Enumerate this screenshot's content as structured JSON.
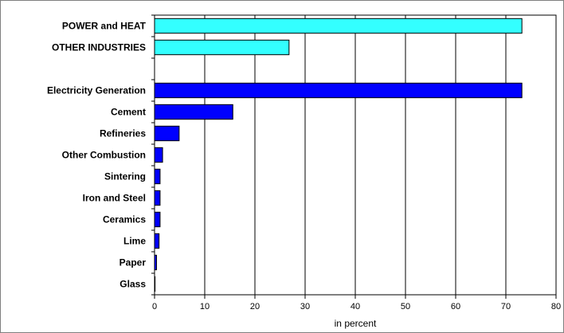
{
  "chart_data": {
    "type": "bar",
    "orientation": "horizontal",
    "categories": [
      "POWER and HEAT",
      "OTHER INDUSTRIES",
      "",
      "Electricity Generation",
      "Cement",
      "Refineries",
      "Other Combustion",
      "Sintering",
      "Iron and Steel",
      "Ceramics",
      "Lime",
      "Paper",
      "Glass"
    ],
    "values": [
      73.2,
      26.8,
      null,
      73.2,
      15.6,
      4.9,
      1.6,
      1.1,
      1.1,
      1.1,
      0.9,
      0.4,
      0.1
    ],
    "bar_colors": [
      "#33FFFF",
      "#33FFFF",
      null,
      "#0000FF",
      "#0000FF",
      "#0000FF",
      "#0000FF",
      "#0000FF",
      "#0000FF",
      "#0000FF",
      "#0000FF",
      "#0000FF",
      "#0000FF"
    ],
    "xlabel": "in percent",
    "ylabel": "",
    "xlim": [
      0,
      80
    ],
    "xticks": [
      0,
      10,
      20,
      30,
      40,
      50,
      60,
      70,
      80
    ],
    "grid": "vertical",
    "legend": "none"
  },
  "colors": {
    "background": "#FFFFFF",
    "bar_outline": "#000000",
    "gridlines": "#000000",
    "frame": "#7F7F7F"
  }
}
